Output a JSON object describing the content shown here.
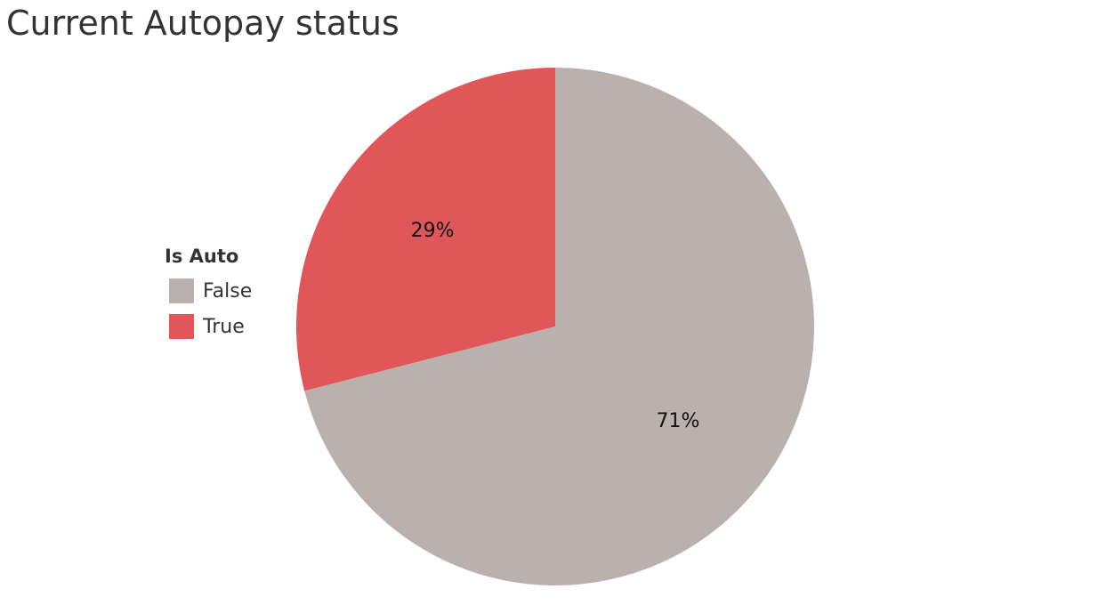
{
  "chart_data": {
    "type": "pie",
    "title": "Current Autopay status",
    "legend_title": "Is Auto",
    "legend_position": "left",
    "slices": [
      {
        "label": "False",
        "value": 71,
        "display": "71%",
        "color": "#bab0ac"
      },
      {
        "label": "True",
        "value": 29,
        "display": "29%",
        "color": "#e15759"
      }
    ]
  }
}
